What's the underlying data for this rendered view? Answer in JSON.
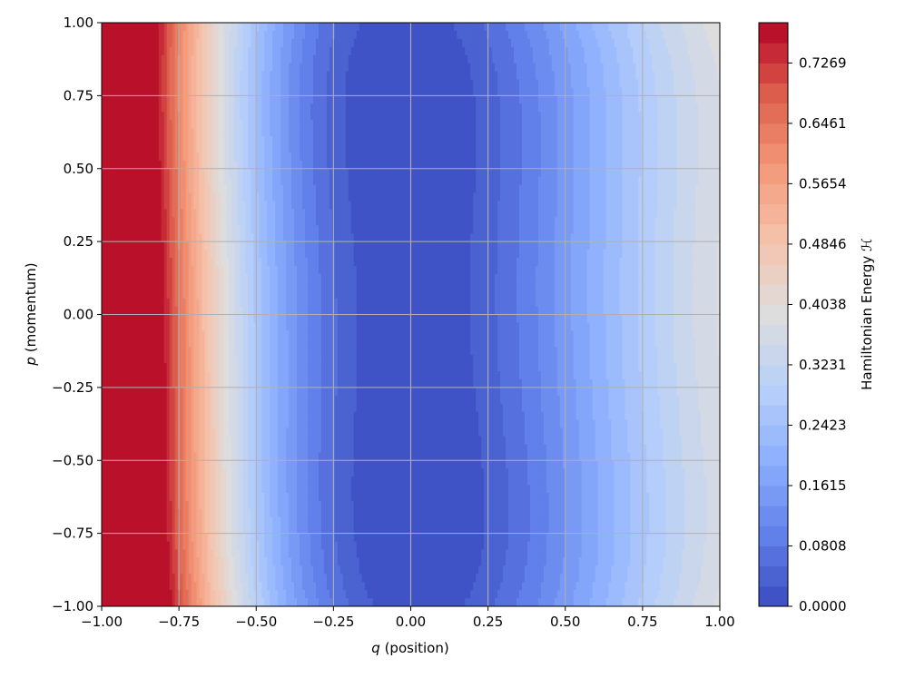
{
  "chart_data": {
    "type": "heatmap",
    "title": "",
    "xlabel": {
      "symbol": "q",
      "text": " (position)"
    },
    "ylabel": {
      "symbol": "p",
      "text": " (momentum)"
    },
    "colorbar_label": "Hamiltonian Energy ℋ",
    "xlim": [
      -1.0,
      1.0
    ],
    "ylim": [
      -1.0,
      1.0
    ],
    "grid": true,
    "colormap": "coolwarm",
    "color_range": [
      0.0,
      0.7808
    ],
    "x_ticks": [
      "−1.00",
      "−0.75",
      "−0.50",
      "−0.25",
      "0.00",
      "0.25",
      "0.50",
      "0.75",
      "1.00"
    ],
    "y_ticks": [
      "−1.00",
      "−0.75",
      "−0.50",
      "−0.25",
      "0.00",
      "0.25",
      "0.50",
      "0.75",
      "1.00"
    ],
    "colorbar_ticks": [
      "0.0000",
      "0.0808",
      "0.1615",
      "0.2423",
      "0.3231",
      "0.4038",
      "0.4846",
      "0.5654",
      "0.6461",
      "0.7269"
    ],
    "colors": {
      "cold": "#3b4cc0",
      "neutral": "#dddddd",
      "hot": "#b40426",
      "grid": "#b0b0b0"
    }
  }
}
